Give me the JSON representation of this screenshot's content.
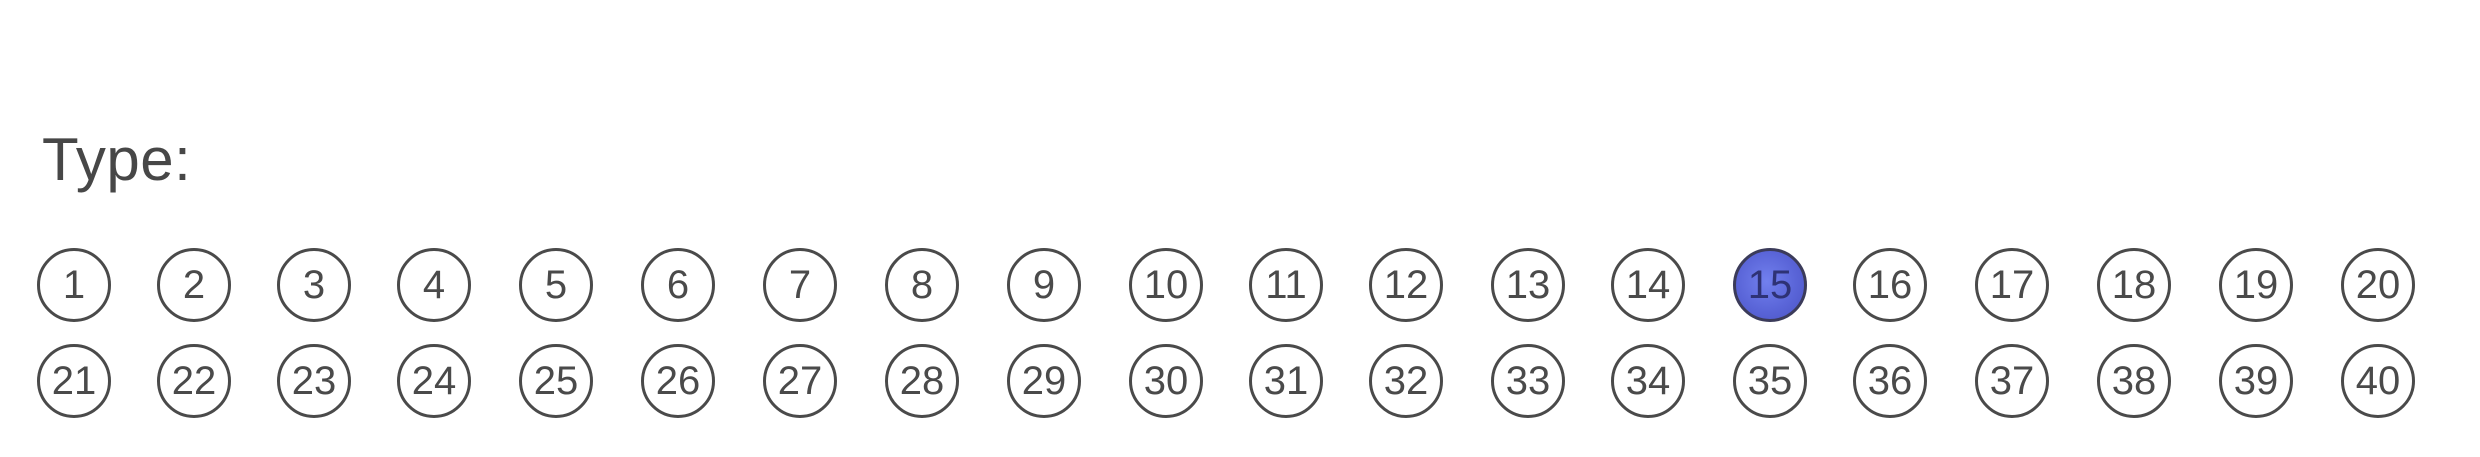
{
  "form": {
    "label": "Type:",
    "selected": 15,
    "fill_color": "#5a65d8",
    "rows": [
      [
        "1",
        "2",
        "3",
        "4",
        "5",
        "6",
        "7",
        "8",
        "9",
        "10",
        "11",
        "12",
        "13",
        "14",
        "15",
        "16",
        "17",
        "18",
        "19",
        "20"
      ],
      [
        "21",
        "22",
        "23",
        "24",
        "25",
        "26",
        "27",
        "28",
        "29",
        "30",
        "31",
        "32",
        "33",
        "34",
        "35",
        "36",
        "37",
        "38",
        "39",
        "40"
      ]
    ]
  }
}
